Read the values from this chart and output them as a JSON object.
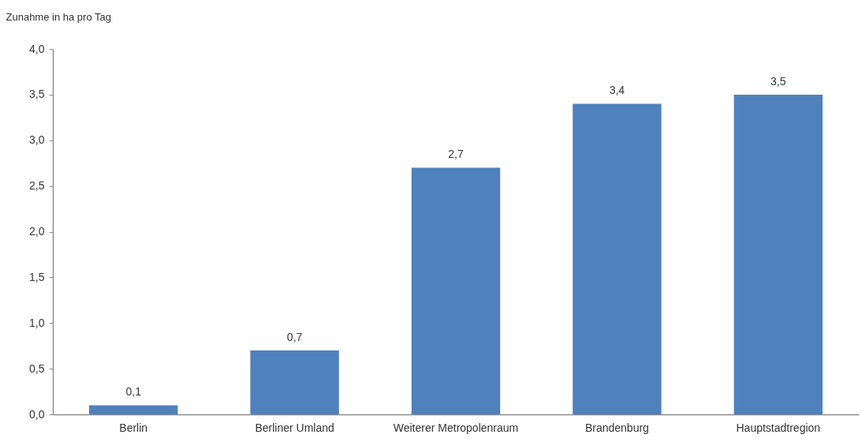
{
  "chart_data": {
    "type": "bar",
    "ylabel": "Zunahme in ha pro Tag",
    "categories": [
      "Berlin",
      "Berliner Umland",
      "Weiterer Metropolenraum",
      "Brandenburg",
      "Hauptstadtregion"
    ],
    "values": [
      0.1,
      0.7,
      2.7,
      3.4,
      3.5
    ],
    "value_labels": [
      "0,1",
      "0,7",
      "2,7",
      "3,4",
      "3,5"
    ],
    "color": "#4f81bd",
    "ylim": [
      0,
      4
    ],
    "yticks": [
      {
        "value": 0,
        "label": "0,0"
      },
      {
        "value": 0.5,
        "label": "0,5"
      },
      {
        "value": 1,
        "label": "1,0"
      },
      {
        "value": 1.5,
        "label": "1,5"
      },
      {
        "value": 2,
        "label": "2,0"
      },
      {
        "value": 2.5,
        "label": "2,5"
      },
      {
        "value": 3,
        "label": "3,0"
      },
      {
        "value": 3.5,
        "label": "3,5"
      },
      {
        "value": 4,
        "label": "4,0"
      }
    ]
  }
}
